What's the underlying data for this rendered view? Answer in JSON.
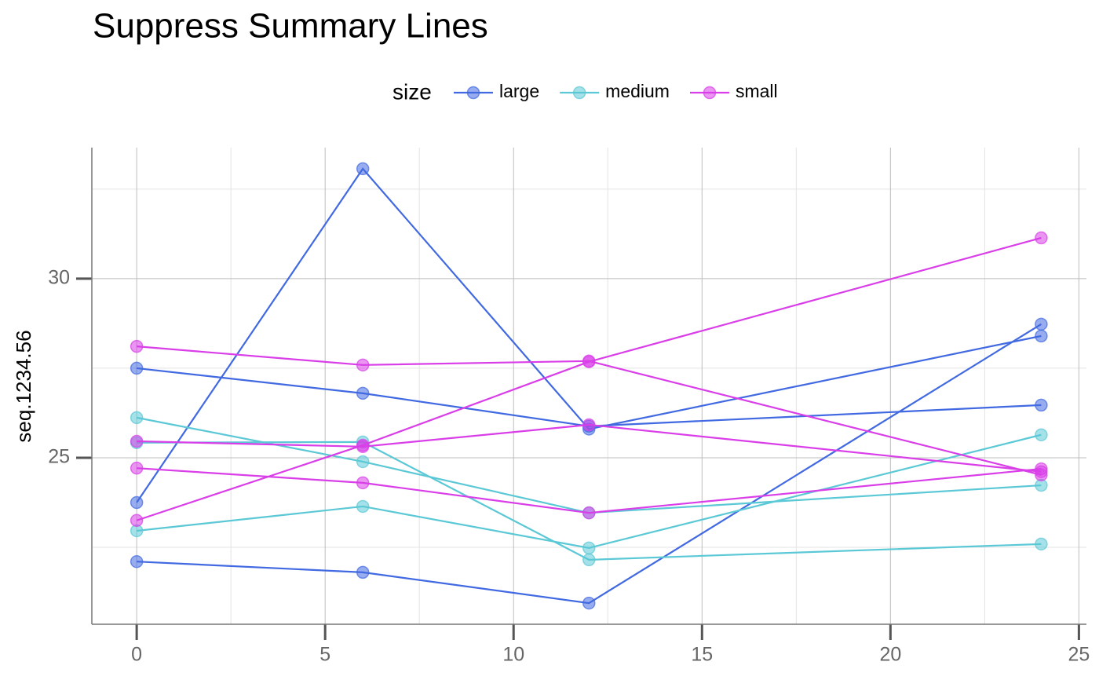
{
  "chart_data": {
    "type": "line",
    "title": "Suppress Summary Lines",
    "y_label": "seq.1234.56",
    "legend_title": "size",
    "legend_position": "top",
    "x": [
      0,
      6,
      12,
      24
    ],
    "xlim": [
      -1.19,
      25.2
    ],
    "xticks": [
      0,
      5,
      10,
      15,
      20,
      25
    ],
    "x_minor_ticks": [
      2.5,
      7.5,
      12.5,
      17.5,
      22.5
    ],
    "ylim": [
      20.35,
      33.66
    ],
    "yticks": [
      25,
      30
    ],
    "y_minor_ticks": [
      22.5,
      27.5,
      32.5
    ],
    "grid": true,
    "series": [
      {
        "name": "large",
        "color": "#4169e1",
        "lines": [
          {
            "values": [
              27.5,
              26.8,
              25.88,
              26.47
            ]
          },
          {
            "values": [
              23.75,
              33.07,
              25.8,
              28.4
            ]
          },
          {
            "values": [
              22.1,
              21.8,
              20.94,
              28.73
            ]
          }
        ]
      },
      {
        "name": "medium",
        "color": "#5bc8d6",
        "lines": [
          {
            "values": [
              26.12,
              24.89,
              23.46,
              24.23
            ]
          },
          {
            "values": [
              25.42,
              25.44,
              22.15,
              22.59
            ]
          },
          {
            "values": [
              22.96,
              23.64,
              22.48,
              25.64
            ]
          }
        ]
      },
      {
        "name": "small",
        "color": "#d93ee8",
        "lines": [
          {
            "values": [
              28.11,
              27.59,
              27.7,
              24.52
            ]
          },
          {
            "values": [
              23.25,
              25.35,
              27.68,
              31.14
            ]
          },
          {
            "values": [
              25.46,
              25.31,
              25.92,
              24.61
            ]
          },
          {
            "values": [
              24.71,
              24.3,
              23.46,
              24.69
            ]
          }
        ]
      }
    ]
  }
}
